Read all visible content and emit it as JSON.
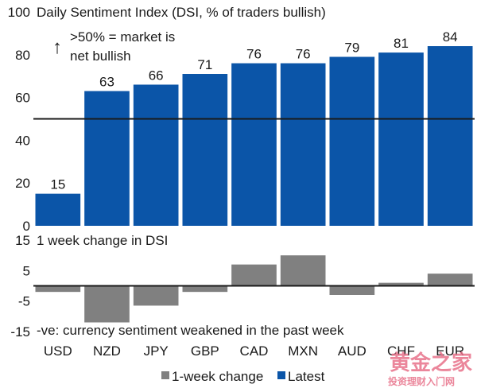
{
  "chart_data": [
    {
      "type": "bar",
      "title": "Daily Sentiment Index (DSI, % of traders bullish)",
      "annotation_arrow": "↑",
      "annotation_line1": ">50% = market is",
      "annotation_line2": "net bullish",
      "categories": [
        "USD",
        "NZD",
        "JPY",
        "GBP",
        "CAD",
        "MXN",
        "AUD",
        "CHF",
        "EUR"
      ],
      "series": [
        {
          "name": "Latest",
          "color": "#0b55a8",
          "values": [
            15,
            63,
            66,
            71,
            76,
            76,
            79,
            81,
            84
          ]
        }
      ],
      "data_labels": [
        "15",
        "63",
        "66",
        "71",
        "76",
        "76",
        "79",
        "81",
        "84"
      ],
      "reference_line": 50,
      "ylim": [
        0,
        100
      ],
      "yticks": [
        "100",
        "80",
        "60",
        "40",
        "20",
        "0"
      ],
      "ytick_values": [
        100,
        80,
        60,
        40,
        20,
        0
      ],
      "xlabel": "",
      "ylabel": ""
    },
    {
      "type": "bar",
      "title": "1 week change in DSI",
      "footnote": "-ve: currency sentiment weakened in the past week",
      "categories": [
        "USD",
        "NZD",
        "JPY",
        "GBP",
        "CAD",
        "MXN",
        "AUD",
        "CHF",
        "EUR"
      ],
      "series": [
        {
          "name": "1-week change",
          "color": "#808080",
          "values": [
            -2,
            -12,
            -6.5,
            -2,
            7,
            10,
            -3,
            1,
            4
          ]
        }
      ],
      "ylim": [
        -15,
        15
      ],
      "yticks": [
        "15",
        "5",
        "-5",
        "-15"
      ],
      "ytick_values": [
        15,
        5,
        -5,
        -15
      ],
      "xlabel": "",
      "ylabel": ""
    }
  ],
  "legend": {
    "position": "bottom-center",
    "items": [
      {
        "label": "1-week change",
        "color": "#808080"
      },
      {
        "label": "Latest",
        "color": "#0b55a8"
      }
    ]
  },
  "watermark": {
    "line1": "黄金之家",
    "line2": "投资理财入门网"
  }
}
